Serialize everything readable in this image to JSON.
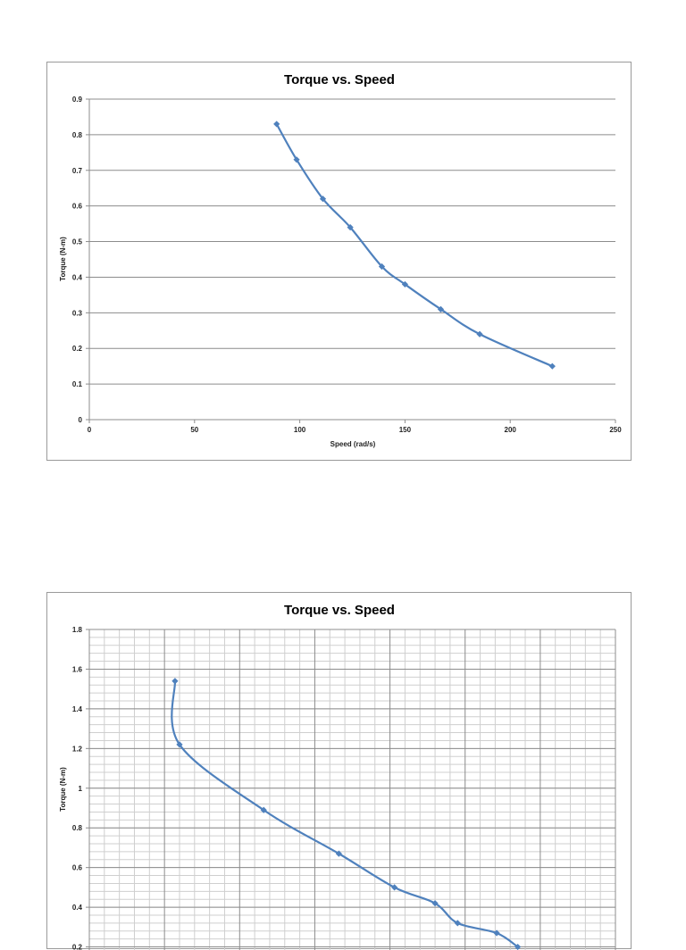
{
  "chart_data": [
    {
      "type": "line",
      "title": "Torque vs. Speed",
      "xlabel": "Speed (rad/s)",
      "ylabel": "Torque (N-m)",
      "xlim": [
        0,
        250
      ],
      "ylim": [
        0,
        0.9
      ],
      "x_ticks": [
        "0",
        "50",
        "100",
        "150",
        "200",
        "250"
      ],
      "y_ticks": [
        "0",
        "0.1",
        "0.2",
        "0.3",
        "0.4",
        "0.5",
        "0.6",
        "0.7",
        "0.8",
        "0.9"
      ],
      "grid": "horizontal major",
      "line_color": "#4f81bd",
      "marker": "diamond",
      "smooth": true,
      "series": [
        {
          "x": [
            89,
            98.5,
            111,
            124,
            139,
            150,
            167,
            185.5,
            220
          ],
          "y": [
            0.83,
            0.73,
            0.62,
            0.54,
            0.43,
            0.38,
            0.31,
            0.24,
            0.15
          ]
        }
      ]
    },
    {
      "type": "line",
      "title": "Torque vs. Speed",
      "xlabel": "",
      "ylabel": "Torque (N-m)",
      "xlim": [
        0,
        35
      ],
      "ylim": [
        0,
        1.8
      ],
      "y_ticks": [
        "0.2",
        "0.4",
        "0.6",
        "0.8",
        "1",
        "1.2",
        "1.4",
        "1.6",
        "1.8"
      ],
      "grid": "major and minor",
      "line_color": "#4f81bd",
      "marker": "diamond",
      "smooth": true,
      "series": [
        {
          "x": [
            5.7,
            6.0,
            11.6,
            16.6,
            20.3,
            23.0,
            24.5,
            27.1,
            28.5
          ],
          "y": [
            1.54,
            1.22,
            0.89,
            0.67,
            0.5,
            0.42,
            0.32,
            0.27,
            0.2
          ]
        }
      ]
    }
  ]
}
